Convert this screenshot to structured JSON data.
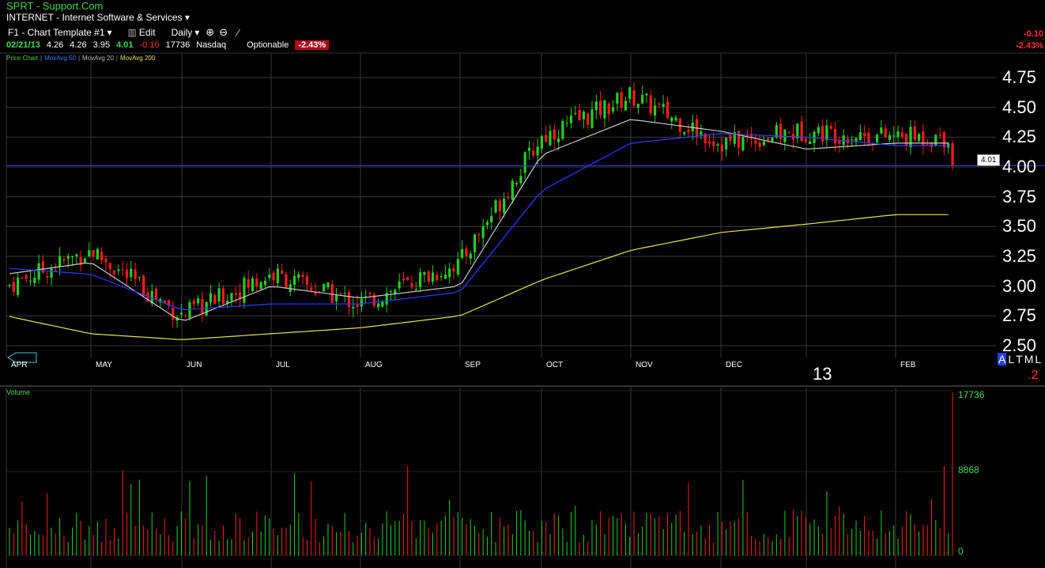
{
  "header": {
    "title": "SPRT  - Support.Com",
    "sector": "INTERNET - Internet Software & Services"
  },
  "toolbar": {
    "template": "F1 - Chart Template #1",
    "edit": "Edit",
    "period": "Daily"
  },
  "quote": {
    "date": "02/21/13",
    "open": "4.26",
    "high": "4.26",
    "low": "3.95",
    "close": "4.01",
    "change": "-0.10",
    "volume": "17736",
    "exchange": "Nasdaq",
    "optionable": "Optionable",
    "pct_change": "-2.43%"
  },
  "corner": {
    "change": "-0.10",
    "pct": "-2.43%"
  },
  "legend": {
    "price_chart": "Price Chart",
    "ma50": "MovAvg 50",
    "ma20": "MovAvg 20",
    "ma200": "MovAvg 200"
  },
  "price_tag": "4.01",
  "side_letters": [
    "A",
    "L",
    "T",
    "M",
    "L"
  ],
  "side_partial": ".2",
  "year_label": "13",
  "volume_pane": {
    "title": "Volume",
    "max": "17736",
    "mid": "8868",
    "zero": "0"
  },
  "colors": {
    "up": "#22d022",
    "down": "#ff1a1a",
    "ma50": "#2b3cff",
    "ma20": "#c8c8c8",
    "ma200": "#e6e64a",
    "grid": "#3a3a3a",
    "price_line": "#2233dd"
  },
  "chart_data": [
    {
      "type": "candlestick",
      "title": "SPRT - Support.Com",
      "x": [
        "APR",
        "MAY",
        "JUN",
        "JUL",
        "AUG",
        "SEP",
        "OCT",
        "NOV",
        "DEC",
        "13",
        "FEB"
      ],
      "y_ticks": [
        2.5,
        2.75,
        3.0,
        3.25,
        3.5,
        3.75,
        4.0,
        4.25,
        4.5,
        4.75
      ],
      "ylim": [
        2.4,
        4.95
      ],
      "current_price": 4.01,
      "series": [
        {
          "name": "Price Chart",
          "close_by_month_anchor": [
            {
              "month": "APR",
              "value": 3.0
            },
            {
              "month": "MAY",
              "value": 3.3
            },
            {
              "month": "JUN",
              "value": 2.75
            },
            {
              "month": "JUL",
              "value": 3.1
            },
            {
              "month": "AUG",
              "value": 2.85
            },
            {
              "month": "SEP",
              "value": 3.2
            },
            {
              "month": "OCT",
              "value": 4.25
            },
            {
              "month": "NOV",
              "value": 4.6
            },
            {
              "month": "DEC",
              "value": 4.2
            },
            {
              "month": "13",
              "value": 4.3
            },
            {
              "month": "FEB",
              "value": 4.25
            }
          ]
        },
        {
          "name": "MovAvg 20",
          "values_by_month": [
            3.1,
            3.2,
            2.7,
            3.0,
            2.9,
            3.0,
            4.1,
            4.4,
            4.3,
            4.15,
            4.2
          ]
        },
        {
          "name": "MovAvg 50",
          "values_by_month": [
            3.15,
            3.1,
            2.8,
            2.85,
            2.85,
            2.95,
            3.8,
            4.2,
            4.28,
            4.25,
            4.18
          ]
        },
        {
          "name": "MovAvg 200",
          "values_by_month": [
            2.75,
            2.6,
            2.55,
            2.6,
            2.65,
            2.75,
            3.05,
            3.3,
            3.45,
            3.52,
            3.6
          ]
        }
      ]
    },
    {
      "type": "bar",
      "title": "Volume",
      "yticks": [
        0,
        8868,
        17736
      ],
      "ylim": [
        0,
        17736
      ],
      "last_value": 17736
    }
  ]
}
